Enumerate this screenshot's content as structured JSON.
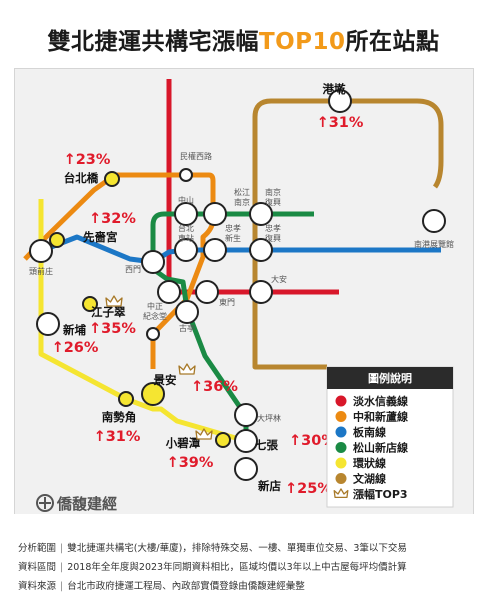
{
  "title": {
    "before": "雙北捷運共構宅漲幅",
    "highlight": "TOP10",
    "after": "所在站點"
  },
  "station_labels": [
    "港墘",
    "民權西路",
    "松江南京",
    "南京復興",
    "南港展覽館",
    "中山",
    "台北車站",
    "忠孝新生",
    "忠孝復興",
    "西門",
    "大安",
    "中正紀念堂",
    "東門",
    "古亭",
    "頂溪",
    "台北橋",
    "先嗇宮",
    "頭前庄",
    "江子翠",
    "新埔",
    "景安",
    "南勢角",
    "大坪林",
    "小碧潭",
    "七張",
    "新店"
  ],
  "top10": [
    {
      "station": "港墘",
      "change": "↑31%"
    },
    {
      "station": "台北橋",
      "change": "↑23%"
    },
    {
      "station": "先嗇宮",
      "change": "↑32%"
    },
    {
      "station": "江子翠",
      "change": "↑35%"
    },
    {
      "station": "新埔",
      "change": "↑26%"
    },
    {
      "station": "景安",
      "change": "↑36%"
    },
    {
      "station": "南勢角",
      "change": "↑31%"
    },
    {
      "station": "小碧潭",
      "change": "↑39%"
    },
    {
      "station": "七張",
      "change": "↑30%"
    },
    {
      "station": "新店",
      "change": "↑25%"
    }
  ],
  "top3_crowned": [
    "小碧潭",
    "景安",
    "江子翠"
  ],
  "lines": [
    {
      "key": "tamsui",
      "color": "#d8172a"
    },
    {
      "key": "zhonghe",
      "color": "#ec8a12"
    },
    {
      "key": "bannan",
      "color": "#1c77c6"
    },
    {
      "key": "songshan",
      "color": "#1a8a44"
    },
    {
      "key": "circular",
      "color": "#f5e531"
    },
    {
      "key": "wenhu",
      "color": "#b8862f"
    }
  ],
  "legend": {
    "title": "圖例說明",
    "items": [
      {
        "label": "淡水信義線",
        "color": "#d8172a",
        "type": "dot"
      },
      {
        "label": "中和新蘆線",
        "color": "#ec8a12",
        "type": "dot"
      },
      {
        "label": "板南線",
        "color": "#1c77c6",
        "type": "dot"
      },
      {
        "label": "松山新店線",
        "color": "#1a8a44",
        "type": "dot"
      },
      {
        "label": "環狀線",
        "color": "#f5e531",
        "type": "dot"
      },
      {
        "label": "文湖線",
        "color": "#b8862f",
        "type": "dot"
      },
      {
        "label": "漲幅TOP3",
        "color": "#b8862f",
        "type": "crown"
      }
    ]
  },
  "brand": "僑馥建經",
  "footer": [
    {
      "key": "分析範圍",
      "value": "雙北捷運共構宅(大樓/華廈)，排除特殊交易、一樓、單獨車位交易、3筆以下交易"
    },
    {
      "key": "資料區間",
      "value": "2018年全年度與2023年同期資料相比，區域均價以3年以上中古屋每坪均價計算"
    },
    {
      "key": "資料來源",
      "value": "台北市政府捷運工程局、內政部實價登錄由僑馥建經彙整"
    }
  ],
  "colors": {
    "accent_orange": "#f29a1a",
    "change_red": "#e01b2b",
    "legend_header": "#2b2b2b"
  }
}
